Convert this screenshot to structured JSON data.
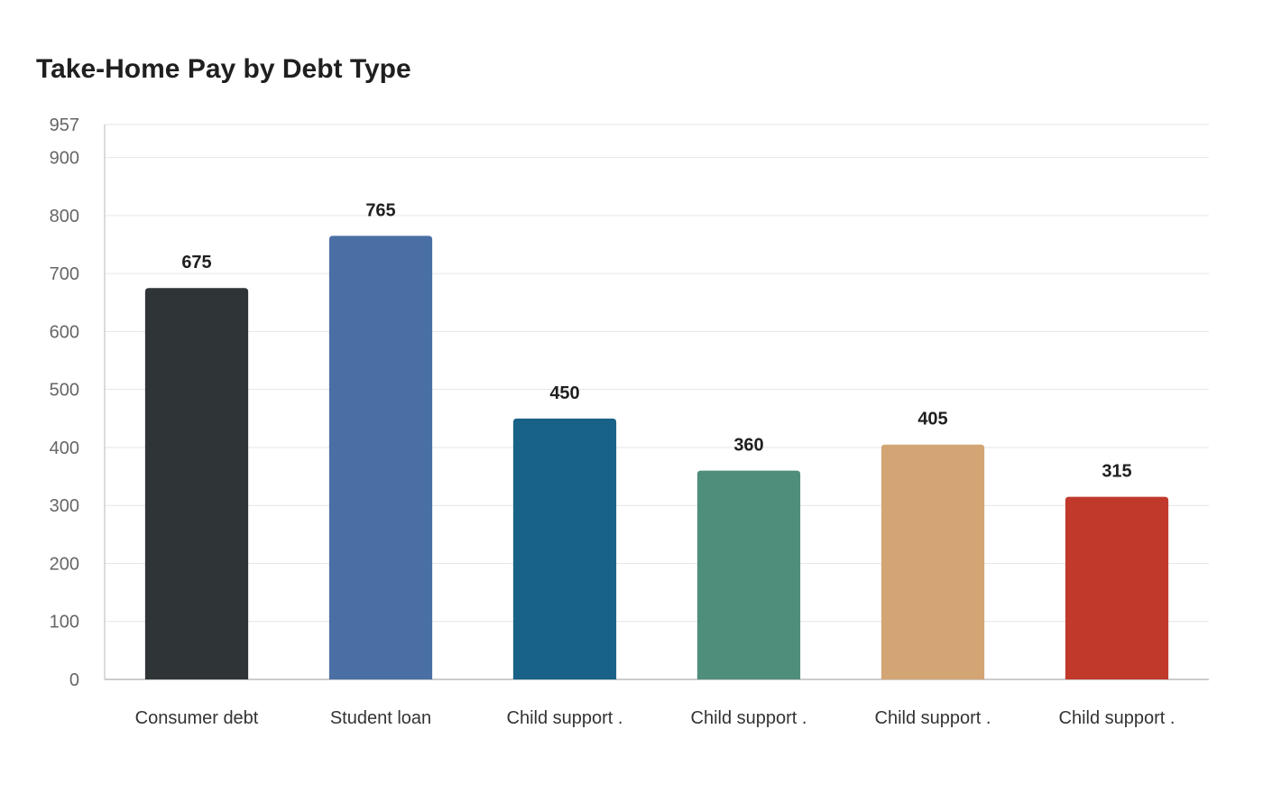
{
  "chart_data": {
    "type": "bar",
    "title": "Take-Home Pay by Debt Type",
    "xlabel": "",
    "ylabel": "",
    "categories": [
      "Consumer debt",
      "Student loan",
      "Child support .",
      "Child support .",
      "Child support .",
      "Child support ."
    ],
    "values": [
      675,
      765,
      450,
      360,
      405,
      315
    ],
    "colors": [
      "#2f3437",
      "#4a6fa5",
      "#186288",
      "#4e8e7b",
      "#d3a574",
      "#c0392b"
    ],
    "ylim": [
      0,
      957
    ],
    "yticks": [
      0,
      100,
      200,
      300,
      400,
      500,
      600,
      700,
      800,
      900,
      957
    ],
    "grid": true,
    "legend": "none"
  }
}
